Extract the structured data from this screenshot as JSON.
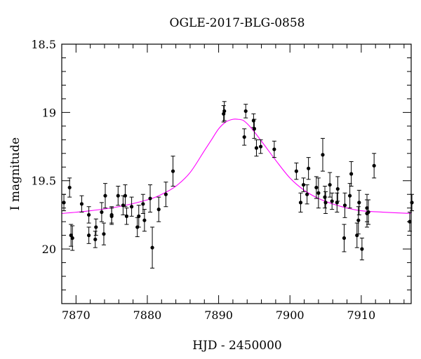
{
  "chart_data": {
    "type": "scatter",
    "title": "OGLE-2017-BLG-0858",
    "xlabel": "HJD - 2450000",
    "ylabel": "I magnitude",
    "xlim": [
      7868,
      7917
    ],
    "ylim": [
      20.4,
      18.5
    ],
    "y_inverted": true,
    "x_ticks": [
      7870,
      7880,
      7890,
      7900,
      7910
    ],
    "x_tick_labels": [
      "7870",
      "7880",
      "7890",
      "7900",
      "7910"
    ],
    "y_ticks": [
      18.5,
      19,
      19.5,
      20
    ],
    "y_tick_labels": [
      "18.5",
      "19",
      "19.5",
      "20"
    ],
    "grid": false,
    "colors": {
      "data": "#000000",
      "model": "#ff00ff"
    },
    "series": [
      {
        "kind": "points_with_errorbars",
        "x": [
          7868.3,
          7869.1,
          7869.3,
          7869.5,
          7870.8,
          7871.8,
          7871.8,
          7872.7,
          7872.8,
          7873.6,
          7873.9,
          7874.1,
          7875.0,
          7875.0,
          7875.9,
          7876.6,
          7876.9,
          7877.1,
          7877.8,
          7878.6,
          7878.8,
          7879.4,
          7879.6,
          7880.4,
          7880.7,
          7881.6,
          7882.6,
          7883.6,
          7890.7,
          7890.8,
          7893.6,
          7893.8,
          7894.9,
          7895.0,
          7895.3,
          7895.9,
          7897.8,
          7900.9,
          7901.5,
          7901.9,
          7902.4,
          7902.6,
          7903.7,
          7904.0,
          7904.6,
          7904.9,
          7905.0,
          7905.6,
          7905.9,
          7906.6,
          7906.7,
          7907.6,
          7907.7,
          7908.4,
          7908.6,
          7909.4,
          7909.6,
          7909.7,
          7910.1,
          7910.8,
          7910.8,
          7911.0,
          7911.8,
          7916.8,
          7917.1
        ],
        "y": [
          19.66,
          19.55,
          19.9,
          19.92,
          19.67,
          19.9,
          19.75,
          19.93,
          19.84,
          19.73,
          19.89,
          19.61,
          19.75,
          19.76,
          19.61,
          19.68,
          19.61,
          19.76,
          19.69,
          19.84,
          19.76,
          19.67,
          19.79,
          19.63,
          19.99,
          19.71,
          19.6,
          19.43,
          19.01,
          18.99,
          19.18,
          18.99,
          19.06,
          19.12,
          19.26,
          19.25,
          19.27,
          19.43,
          19.66,
          19.53,
          19.6,
          19.41,
          19.55,
          19.59,
          19.31,
          19.62,
          19.66,
          19.53,
          19.65,
          19.66,
          19.56,
          19.92,
          19.68,
          19.61,
          19.45,
          19.9,
          19.79,
          19.66,
          20.0,
          19.7,
          19.74,
          19.73,
          19.39,
          19.8,
          19.66
        ],
        "yerr": [
          0.06,
          0.07,
          0.08,
          0.09,
          0.06,
          0.06,
          0.06,
          0.06,
          0.06,
          0.07,
          0.08,
          0.09,
          0.06,
          0.06,
          0.07,
          0.07,
          0.08,
          0.06,
          0.07,
          0.07,
          0.08,
          0.07,
          0.08,
          0.1,
          0.15,
          0.09,
          0.09,
          0.11,
          0.06,
          0.07,
          0.06,
          0.05,
          0.05,
          0.07,
          0.06,
          0.05,
          0.06,
          0.06,
          0.07,
          0.05,
          0.07,
          0.08,
          0.08,
          0.11,
          0.12,
          0.08,
          0.08,
          0.09,
          0.06,
          0.07,
          0.09,
          0.1,
          0.09,
          0.09,
          0.09,
          0.09,
          0.1,
          0.09,
          0.08,
          0.1,
          0.1,
          0.09,
          0.09,
          0.07,
          0.06
        ]
      },
      {
        "kind": "model_curve",
        "x": [
          7868,
          7872,
          7876,
          7880,
          7882,
          7884,
          7886,
          7888,
          7889,
          7890,
          7891,
          7892,
          7892.7,
          7893.5,
          7894.5,
          7896,
          7898,
          7900,
          7902,
          7904,
          7906,
          7908,
          7910,
          7913,
          7917
        ],
        "y": [
          19.74,
          19.72,
          19.69,
          19.64,
          19.6,
          19.54,
          19.44,
          19.28,
          19.2,
          19.12,
          19.07,
          19.05,
          19.05,
          19.06,
          19.11,
          19.21,
          19.35,
          19.48,
          19.57,
          19.63,
          19.67,
          19.7,
          19.72,
          19.73,
          19.74
        ]
      }
    ]
  }
}
